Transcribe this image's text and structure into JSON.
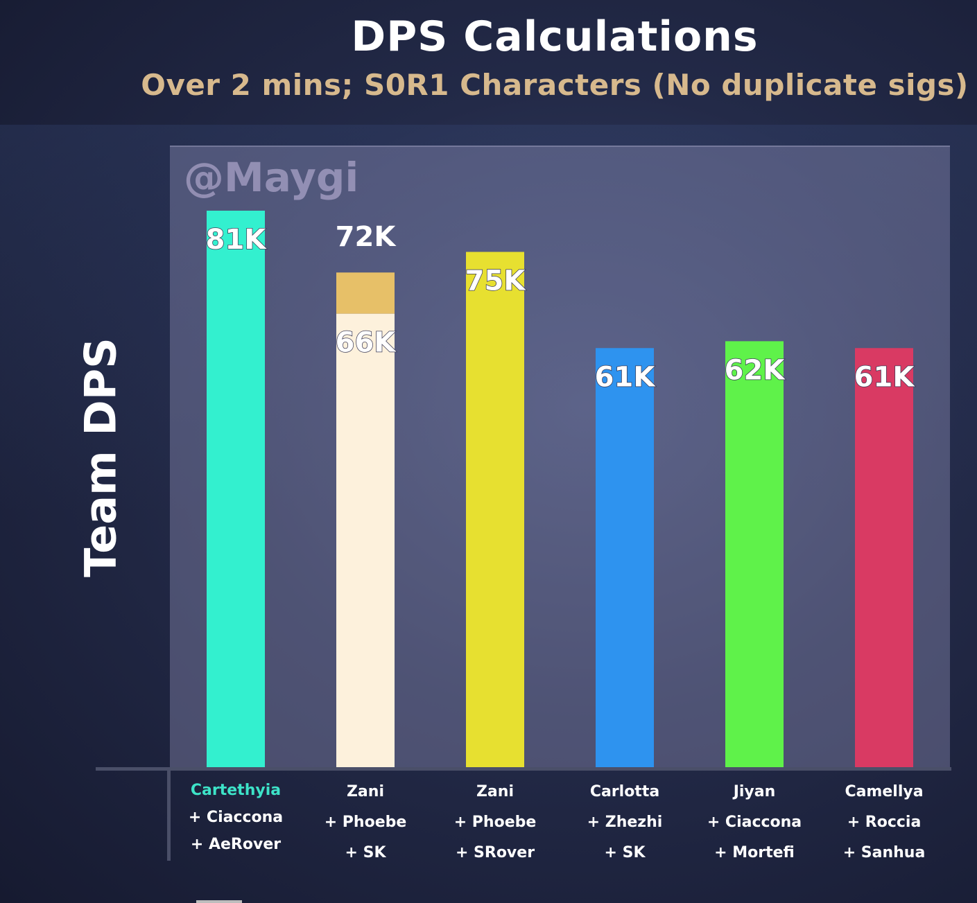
{
  "chart_data": {
    "type": "bar",
    "title": "DPS Calculations",
    "subtitle": "Over 2 mins; S0R1 Characters (No duplicate sigs)",
    "ylabel": "Team DPS",
    "xlabel": "",
    "ylim": [
      0,
      81000
    ],
    "grid": false,
    "categories": [
      {
        "main": "Cartethyia",
        "support": [
          "+ Ciaccona",
          "+ AeRover"
        ],
        "highlight": true
      },
      {
        "main": "Zani",
        "support": [
          "+ Phoebe",
          "+ SK"
        ],
        "highlight": false
      },
      {
        "main": "Zani",
        "support": [
          "+ Phoebe",
          "+ SRover"
        ],
        "highlight": false
      },
      {
        "main": "Carlotta",
        "support": [
          "+ Zhezhi",
          "+ SK"
        ],
        "highlight": false
      },
      {
        "main": "Jiyan",
        "support": [
          "+ Ciaccona",
          "+ Mortefi"
        ],
        "highlight": false
      },
      {
        "main": "Camellya",
        "support": [
          "+ Roccia",
          "+ Sanhua"
        ],
        "highlight": false
      }
    ],
    "bars": [
      {
        "value": 81000,
        "label": "81K",
        "color": "#33f0cf"
      },
      {
        "value": 66000,
        "label": "66K",
        "color": "#fdf1dc",
        "stack_value": 72000,
        "stack_label": "72K",
        "stack_color": "#e7c068"
      },
      {
        "value": 75000,
        "label": "75K",
        "color": "#e7e030"
      },
      {
        "value": 61000,
        "label": "61K",
        "color": "#2e93ef"
      },
      {
        "value": 62000,
        "label": "62K",
        "color": "#5ff24a"
      },
      {
        "value": 61000,
        "label": "61K",
        "color": "#d93a63"
      }
    ]
  },
  "watermark": "@Maygi",
  "colors": {
    "title": "#ffffff",
    "subtitle": "#d7b98d",
    "highlight_label": "#3de3c8"
  }
}
